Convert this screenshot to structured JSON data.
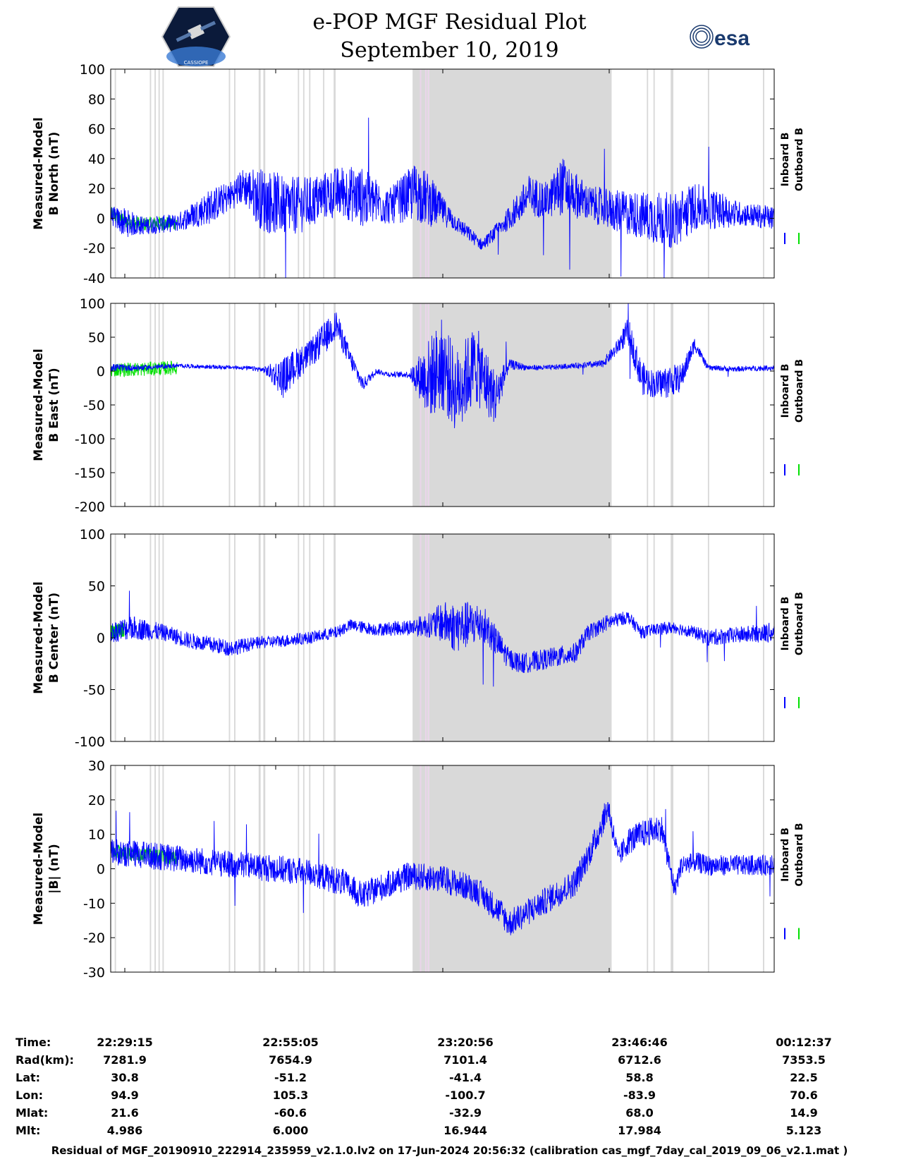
{
  "header": {
    "title": "e-POP MGF Residual Plot",
    "date": "September 10, 2019",
    "esa_logo_text": "esa",
    "cassiope_logo_text": "CASSIOPE"
  },
  "colors": {
    "inboard": "#0000ff",
    "outboard": "#00e000",
    "shade": "#d9d9d9",
    "shade_pink": "#ead5ea"
  },
  "legend": {
    "inboard": "Inboard B",
    "outboard": "Outboard B"
  },
  "chart_data": [
    {
      "type": "line",
      "ylabel": [
        "Measured-Model",
        "B North (nT)"
      ],
      "ylim": [
        -40,
        100
      ],
      "yticks": [
        -40,
        -20,
        0,
        20,
        40,
        60,
        80,
        100
      ],
      "ytick_labels": [
        "-40",
        "-20",
        "0",
        "20",
        "40",
        "60",
        "80",
        "100"
      ],
      "series": [
        {
          "name": "Inboard B",
          "x": [
            0,
            0.02,
            0.05,
            0.1,
            0.15,
            0.18,
            0.2,
            0.23,
            0.27,
            0.3,
            0.32,
            0.35,
            0.38,
            0.42,
            0.46,
            0.48,
            0.5,
            0.52,
            0.56,
            0.59,
            0.61,
            0.63,
            0.66,
            0.68,
            0.72,
            0.76,
            0.8,
            0.85,
            0.88,
            0.92,
            0.95,
            1
          ],
          "y": [
            2,
            -3,
            -5,
            -3,
            8,
            15,
            22,
            12,
            8,
            10,
            15,
            18,
            14,
            8,
            18,
            12,
            5,
            -3,
            -18,
            -5,
            5,
            15,
            12,
            22,
            10,
            5,
            2,
            -2,
            8,
            5,
            3,
            0
          ]
        },
        {
          "name": "Outboard B",
          "x": [
            0,
            0.02,
            0.05,
            0.1
          ],
          "y": [
            3,
            -2,
            -4,
            -3
          ]
        }
      ],
      "envelope_amplitude": [
        6,
        10,
        6,
        6,
        12,
        10,
        12,
        22,
        20,
        18,
        16,
        18,
        20,
        12,
        20,
        18,
        10,
        6,
        4,
        6,
        10,
        14,
        12,
        20,
        12,
        14,
        16,
        20,
        16,
        12,
        8,
        8
      ]
    },
    {
      "type": "line",
      "ylabel": [
        "Measured-Model",
        "B East (nT)"
      ],
      "ylim": [
        -200,
        100
      ],
      "yticks": [
        -200,
        -150,
        -100,
        -50,
        0,
        50,
        100
      ],
      "ytick_labels": [
        "-200",
        "-150",
        "-100",
        "-50",
        "0",
        "50",
        "100"
      ],
      "series": [
        {
          "name": "Inboard B",
          "x": [
            0,
            0.05,
            0.1,
            0.15,
            0.2,
            0.23,
            0.26,
            0.28,
            0.3,
            0.32,
            0.34,
            0.36,
            0.38,
            0.4,
            0.42,
            0.45,
            0.48,
            0.5,
            0.52,
            0.55,
            0.58,
            0.6,
            0.63,
            0.66,
            0.7,
            0.74,
            0.76,
            0.78,
            0.8,
            0.82,
            0.84,
            0.86,
            0.88,
            0.9,
            0.94,
            1
          ],
          "y": [
            5,
            5,
            8,
            6,
            5,
            2,
            -10,
            10,
            25,
            45,
            70,
            20,
            -20,
            0,
            -5,
            -5,
            -10,
            10,
            -30,
            10,
            -40,
            10,
            5,
            5,
            8,
            10,
            30,
            60,
            -10,
            -20,
            -15,
            -10,
            40,
            5,
            3,
            5
          ]
        },
        {
          "name": "Outboard B",
          "x": [
            0,
            0.05,
            0.1
          ],
          "y": [
            2,
            3,
            5
          ]
        }
      ],
      "envelope_amplitude": [
        6,
        4,
        3,
        3,
        3,
        4,
        30,
        25,
        20,
        25,
        20,
        15,
        10,
        4,
        4,
        5,
        60,
        70,
        60,
        60,
        40,
        8,
        4,
        4,
        4,
        6,
        10,
        20,
        25,
        20,
        25,
        20,
        10,
        4,
        4,
        4
      ]
    },
    {
      "type": "line",
      "ylabel": [
        "Measured-Model",
        "B Center (nT)"
      ],
      "ylim": [
        -100,
        100
      ],
      "yticks": [
        -100,
        -50,
        0,
        50,
        100
      ],
      "ytick_labels": [
        "-100",
        "-50",
        "0",
        "50",
        "100"
      ],
      "series": [
        {
          "name": "Inboard B",
          "x": [
            0,
            0.03,
            0.08,
            0.12,
            0.18,
            0.22,
            0.26,
            0.3,
            0.34,
            0.36,
            0.4,
            0.45,
            0.48,
            0.5,
            0.52,
            0.56,
            0.6,
            0.62,
            0.66,
            0.7,
            0.72,
            0.75,
            0.78,
            0.8,
            0.82,
            0.85,
            0.88,
            0.9,
            0.95,
            1
          ],
          "y": [
            5,
            10,
            5,
            -3,
            -10,
            -5,
            -3,
            0,
            5,
            12,
            8,
            10,
            12,
            15,
            10,
            15,
            -20,
            -25,
            -20,
            -15,
            5,
            15,
            20,
            5,
            8,
            10,
            5,
            0,
            3,
            5
          ]
        },
        {
          "name": "Outboard B",
          "x": [
            0,
            0.02
          ],
          "y": [
            5,
            8
          ]
        }
      ],
      "envelope_amplitude": [
        10,
        12,
        8,
        8,
        8,
        6,
        6,
        6,
        6,
        6,
        6,
        8,
        12,
        20,
        25,
        20,
        10,
        10,
        10,
        10,
        8,
        8,
        6,
        6,
        6,
        6,
        6,
        8,
        8,
        10
      ]
    },
    {
      "type": "line",
      "ylabel": [
        "Measured-Model",
        "|B| (nT)"
      ],
      "ylim": [
        -30,
        30
      ],
      "yticks": [
        -30,
        -20,
        -10,
        0,
        10,
        20,
        30
      ],
      "ytick_labels": [
        "-30",
        "-20",
        "-10",
        "0",
        "10",
        "20",
        "30"
      ],
      "series": [
        {
          "name": "Inboard B",
          "x": [
            0,
            0.05,
            0.1,
            0.15,
            0.2,
            0.25,
            0.3,
            0.35,
            0.38,
            0.4,
            0.45,
            0.5,
            0.55,
            0.59,
            0.6,
            0.65,
            0.7,
            0.73,
            0.75,
            0.765,
            0.78,
            0.8,
            0.83,
            0.85,
            0.86,
            0.88,
            0.9,
            1
          ],
          "y": [
            5,
            4,
            3,
            2,
            1,
            0,
            -1,
            -4,
            -8,
            -6,
            -2,
            -3,
            -6,
            -13,
            -16,
            -10,
            -4,
            8,
            18,
            3,
            8,
            10,
            12,
            -6,
            1,
            2,
            1,
            1
          ]
        },
        {
          "name": "Outboard B",
          "x": [
            0,
            0.05,
            0.1
          ],
          "y": [
            5,
            4,
            3
          ]
        }
      ],
      "envelope_amplitude": [
        4,
        4,
        4,
        4,
        4,
        4,
        4,
        4,
        4,
        4,
        4,
        4,
        4,
        4,
        4,
        4,
        4,
        4,
        4,
        3,
        4,
        4,
        4,
        3,
        3,
        3,
        3,
        3
      ]
    }
  ],
  "shaded_regions": [
    [
      0.006,
      0.008
    ],
    [
      0.059,
      0.061
    ],
    [
      0.066,
      0.068
    ],
    [
      0.072,
      0.074
    ],
    [
      0.078,
      0.08
    ],
    [
      0.178,
      0.18
    ],
    [
      0.186,
      0.188
    ],
    [
      0.223,
      0.226
    ],
    [
      0.23,
      0.233
    ],
    [
      0.282,
      0.284
    ],
    [
      0.29,
      0.292
    ],
    [
      0.299,
      0.301
    ],
    [
      0.32,
      0.322
    ],
    [
      0.336,
      0.339
    ],
    [
      0.455,
      0.478
    ],
    [
      0.48,
      0.755
    ],
    [
      0.808,
      0.81
    ],
    [
      0.818,
      0.82
    ],
    [
      0.844,
      0.848
    ],
    [
      0.9,
      0.902
    ],
    [
      0.983,
      0.985
    ]
  ],
  "pink_lines": [
    0.466,
    0.474,
    0.478
  ],
  "time_axis": {
    "row_labels": [
      "Time:",
      "Rad(km):",
      "Lat:",
      "Lon:",
      "Mlat:",
      "Mlt:"
    ],
    "columns": [
      [
        "22:29:15",
        "7281.9",
        "30.8",
        "94.9",
        "21.6",
        "4.986"
      ],
      [
        "22:55:05",
        "7654.9",
        "-51.2",
        "105.3",
        "-60.6",
        "6.000"
      ],
      [
        "23:20:56",
        "7101.4",
        "-41.4",
        "-100.7",
        "-32.9",
        "16.944"
      ],
      [
        "23:46:46",
        "6712.6",
        "58.8",
        "-83.9",
        "68.0",
        "17.984"
      ],
      [
        "00:12:37",
        "7353.5",
        "22.5",
        "70.6",
        "14.9",
        "5.123"
      ]
    ]
  },
  "footer": "Residual of MGF_20190910_222914_235959_v2.1.0.lv2 on 17-Jun-2024 20:56:32 (calibration cas_mgf_7day_cal_2019_09_06_v2.1.mat )"
}
